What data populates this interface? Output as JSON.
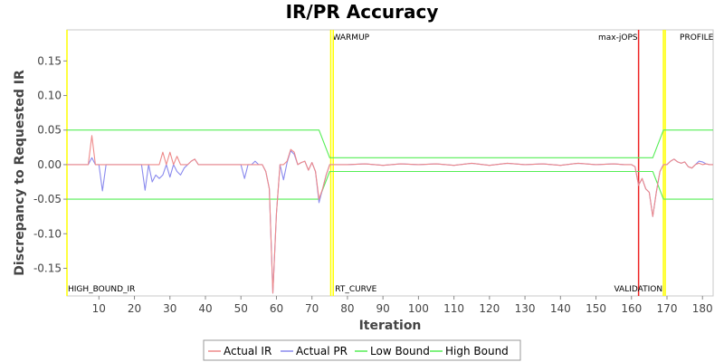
{
  "chart_data": {
    "type": "line",
    "title": "IR/PR Accuracy",
    "xlabel": "Iteration",
    "ylabel": "Discrepancy to Requested IR",
    "xlim": [
      1,
      183
    ],
    "ylim": [
      -0.19,
      0.195
    ],
    "x_ticks": [
      10,
      20,
      30,
      40,
      50,
      60,
      70,
      80,
      90,
      100,
      110,
      120,
      130,
      140,
      150,
      160,
      170,
      180
    ],
    "y_ticks": [
      -0.15,
      -0.1,
      -0.05,
      0.0,
      0.05,
      0.1,
      0.15
    ],
    "y_tick_labels": [
      "-0.15",
      "-0.10",
      "-0.05",
      "0.00",
      "0.05",
      "0.10",
      "0.15"
    ],
    "grid": false,
    "legend_position": "bottom",
    "series": [
      {
        "name": "Actual IR",
        "color": "#ee8a8a",
        "x": [
          1,
          2,
          3,
          4,
          5,
          6,
          7,
          8,
          9,
          10,
          11,
          12,
          13,
          14,
          15,
          16,
          17,
          18,
          19,
          20,
          21,
          22,
          23,
          24,
          25,
          26,
          27,
          28,
          29,
          30,
          31,
          32,
          33,
          34,
          35,
          36,
          37,
          38,
          39,
          40,
          41,
          42,
          43,
          44,
          45,
          46,
          47,
          48,
          49,
          50,
          51,
          52,
          53,
          54,
          55,
          56,
          57,
          58,
          59,
          60,
          61,
          62,
          63,
          64,
          65,
          66,
          67,
          68,
          69,
          70,
          71,
          72,
          73,
          74,
          75,
          76,
          80,
          85,
          90,
          95,
          100,
          105,
          110,
          115,
          120,
          125,
          130,
          135,
          140,
          145,
          150,
          155,
          158,
          160,
          161,
          162,
          163,
          164,
          165,
          166,
          167,
          168,
          169,
          170,
          171,
          172,
          173,
          174,
          175,
          176,
          177,
          178,
          179,
          180,
          181,
          182,
          183
        ],
        "y": [
          0,
          0,
          0,
          0,
          0,
          0,
          0,
          0.042,
          0,
          0,
          0,
          0,
          0,
          0,
          0,
          0,
          0,
          0,
          0,
          0,
          0,
          0,
          0,
          0,
          0,
          0,
          0,
          0.018,
          0,
          0.018,
          0,
          0.012,
          0,
          0,
          0,
          0.005,
          0.008,
          0,
          0,
          0,
          0,
          0,
          0,
          0,
          0,
          0,
          0,
          0,
          0,
          0,
          0,
          0,
          0,
          0,
          0,
          0,
          -0.01,
          -0.035,
          -0.186,
          -0.07,
          0,
          0,
          0.005,
          0.022,
          0.018,
          0,
          0.003,
          0.005,
          -0.008,
          0.003,
          -0.01,
          -0.05,
          -0.035,
          -0.015,
          0,
          0,
          0,
          0.001,
          -0.001,
          0.001,
          0,
          0.001,
          -0.001,
          0.002,
          -0.001,
          0.002,
          0,
          0.001,
          -0.001,
          0.002,
          0,
          0.001,
          0,
          0,
          -0.003,
          -0.03,
          -0.02,
          -0.035,
          -0.04,
          -0.075,
          -0.04,
          -0.01,
          0,
          0,
          0.005,
          0.008,
          0.004,
          0.002,
          0.004,
          -0.003,
          -0.005,
          0,
          0.002,
          0,
          0.001,
          0,
          0
        ]
      },
      {
        "name": "Actual PR",
        "color": "#8a8aee",
        "x": [
          1,
          2,
          3,
          4,
          5,
          6,
          7,
          8,
          9,
          10,
          11,
          12,
          13,
          14,
          15,
          16,
          17,
          18,
          19,
          20,
          21,
          22,
          23,
          24,
          25,
          26,
          27,
          28,
          29,
          30,
          31,
          32,
          33,
          34,
          35,
          36,
          37,
          38,
          39,
          40,
          41,
          42,
          43,
          44,
          45,
          46,
          47,
          48,
          49,
          50,
          51,
          52,
          53,
          54,
          55,
          56,
          57,
          58,
          59,
          60,
          61,
          62,
          63,
          64,
          65,
          66,
          67,
          68,
          69,
          70,
          71,
          72,
          73,
          74,
          75,
          76,
          80,
          85,
          90,
          95,
          100,
          105,
          110,
          115,
          120,
          125,
          130,
          135,
          140,
          145,
          150,
          155,
          158,
          160,
          161,
          162,
          163,
          164,
          165,
          166,
          167,
          168,
          169,
          170,
          171,
          172,
          173,
          174,
          175,
          176,
          177,
          178,
          179,
          180,
          181,
          182,
          183
        ],
        "y": [
          0,
          0,
          0,
          0,
          0,
          0,
          0,
          0.01,
          0,
          0,
          -0.038,
          0,
          0,
          0,
          0,
          0,
          0,
          0,
          0,
          0,
          0,
          0,
          -0.037,
          0,
          -0.025,
          -0.015,
          -0.02,
          -0.015,
          0,
          -0.018,
          0,
          -0.01,
          -0.015,
          -0.005,
          0,
          0.005,
          0.008,
          0,
          0,
          0,
          0,
          0,
          0,
          0,
          0,
          0,
          0,
          0,
          0,
          0,
          -0.02,
          0,
          0,
          0.005,
          0,
          0,
          -0.01,
          -0.035,
          -0.186,
          -0.07,
          0,
          -0.022,
          0.003,
          0.02,
          0.015,
          0,
          0.003,
          0.005,
          -0.008,
          0.003,
          -0.01,
          -0.055,
          -0.035,
          -0.015,
          0,
          0,
          0,
          0.001,
          -0.001,
          0.001,
          0,
          0.001,
          -0.001,
          0.002,
          -0.001,
          0.002,
          0,
          0.001,
          -0.001,
          0.002,
          0,
          0.001,
          0,
          0,
          -0.003,
          -0.03,
          -0.02,
          -0.035,
          -0.04,
          -0.075,
          -0.04,
          -0.01,
          0,
          0,
          0.005,
          0.008,
          0.004,
          0.002,
          0.004,
          -0.003,
          -0.005,
          0,
          0.005,
          0.004,
          0.001,
          0,
          0
        ]
      },
      {
        "name": "Low Bound",
        "color": "#55ee55",
        "x": [
          1,
          72,
          75,
          76,
          166,
          169,
          183
        ],
        "y": [
          -0.05,
          -0.05,
          -0.01,
          -0.01,
          -0.01,
          -0.05,
          -0.05
        ]
      },
      {
        "name": "High Bound",
        "color": "#55ee55",
        "x": [
          1,
          72,
          75,
          76,
          166,
          169,
          183
        ],
        "y": [
          0.05,
          0.05,
          0.01,
          0.01,
          0.01,
          0.05,
          0.05
        ]
      }
    ],
    "markers": [
      {
        "x": 1,
        "label": "HIGH_BOUND_IR",
        "label_pos": "bottom",
        "color": "#ffff00"
      },
      {
        "x": 75.3,
        "label": "WARMUP",
        "label_pos": "top",
        "color": "#ffff00"
      },
      {
        "x": 76,
        "label": "RT_CURVE",
        "label_pos": "bottom",
        "color": "#ffff00"
      },
      {
        "x": 162,
        "label": "max-jOPS",
        "label_pos": "top",
        "color": "#ee2222"
      },
      {
        "x": 169,
        "label": "VALIDATION",
        "label_pos": "bottom",
        "color": "#ffff00"
      },
      {
        "x": 169.5,
        "label": "PROFILE",
        "label_pos": "top",
        "color": "#ffff00"
      }
    ]
  }
}
